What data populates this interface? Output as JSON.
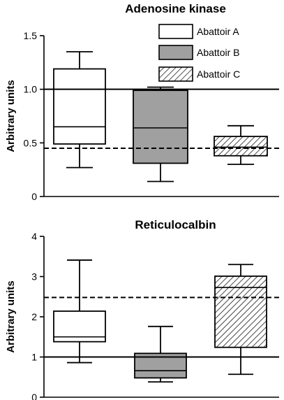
{
  "chart_data": [
    {
      "type": "box",
      "title": "Adenosine kinase",
      "ylabel": "Arbitrary units",
      "ylim": [
        0,
        1.5
      ],
      "yticks": [
        "0",
        "0.5",
        "1.0",
        "1.5"
      ],
      "grid": false,
      "reference_lines": [
        {
          "value": 1.0,
          "style": "solid"
        },
        {
          "value": 0.45,
          "style": "dashed"
        }
      ],
      "legend": {
        "placement": "top-right"
      },
      "series": [
        {
          "name": "Abattoir A",
          "fill": "white",
          "min": 0.27,
          "q1": 0.49,
          "median": 0.65,
          "q3": 1.19,
          "max": 1.35
        },
        {
          "name": "Abattoir B",
          "fill": "gray",
          "min": 0.14,
          "q1": 0.31,
          "median": 0.64,
          "q3": 0.99,
          "max": 1.02
        },
        {
          "name": "Abattoir C",
          "fill": "hatched",
          "min": 0.3,
          "q1": 0.38,
          "median": 0.46,
          "q3": 0.56,
          "max": 0.66
        }
      ]
    },
    {
      "type": "box",
      "title": "Reticulocalbin",
      "ylabel": "Arbitrary units",
      "ylim": [
        0,
        4
      ],
      "yticks": [
        "0",
        "1",
        "2",
        "3",
        "4"
      ],
      "grid": false,
      "reference_lines": [
        {
          "value": 1.0,
          "style": "solid"
        },
        {
          "value": 2.48,
          "style": "dashed"
        }
      ],
      "series": [
        {
          "name": "Abattoir A",
          "fill": "white",
          "min": 0.86,
          "q1": 1.38,
          "median": 1.5,
          "q3": 2.14,
          "max": 3.41
        },
        {
          "name": "Abattoir B",
          "fill": "gray",
          "min": 0.38,
          "q1": 0.48,
          "median": 0.66,
          "q3": 1.09,
          "max": 1.76
        },
        {
          "name": "Abattoir C",
          "fill": "hatched",
          "min": 0.57,
          "q1": 1.24,
          "median": 2.73,
          "q3": 3.01,
          "max": 3.3
        }
      ]
    }
  ],
  "colors": {
    "gray_fill": "#a0a0a0",
    "line": "#000000",
    "background": "#ffffff"
  }
}
